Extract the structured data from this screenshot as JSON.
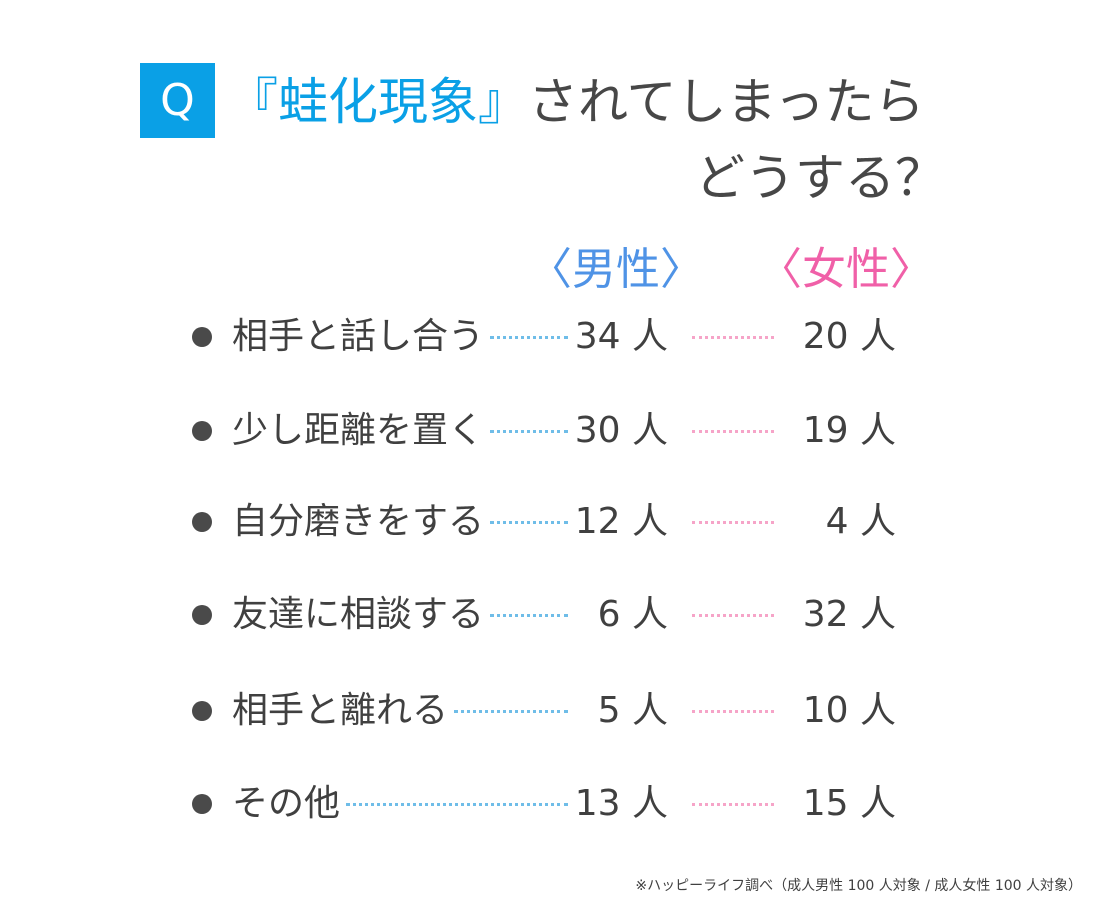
{
  "title": {
    "badge": "Q",
    "highlight": "『蛙化現象』",
    "line1_rest": "されてしまったら",
    "line2": "どうする？"
  },
  "columns": {
    "male": "〈男性〉",
    "female": "〈女性〉"
  },
  "unit": "人",
  "colors": {
    "accent_blue": "#0aa0e6",
    "male": "#4f93e6",
    "female": "#f060a8",
    "male_dots": "#6fbde8",
    "female_dots": "#f6a4c8"
  },
  "chart_data": {
    "type": "table",
    "columns": [
      "〈男性〉",
      "〈女性〉"
    ],
    "categories": [
      "相手と話し合う",
      "少し距離を置く",
      "自分磨きをする",
      "友達に相談する",
      "相手と離れる",
      "その他"
    ],
    "series": [
      {
        "name": "〈男性〉",
        "values": [
          34,
          30,
          12,
          6,
          5,
          13
        ]
      },
      {
        "name": "〈女性〉",
        "values": [
          20,
          19,
          4,
          32,
          10,
          15
        ]
      }
    ],
    "unit": "人"
  },
  "rows": [
    {
      "label": "相手と話し合う",
      "male": "34 人",
      "female": "20 人"
    },
    {
      "label": "少し距離を置く",
      "male": "30 人",
      "female": "19 人"
    },
    {
      "label": "自分磨きをする",
      "male": "12 人",
      "female": "4 人"
    },
    {
      "label": "友達に相談する",
      "male": "6 人",
      "female": "32 人"
    },
    {
      "label": "相手と離れる",
      "male": "5 人",
      "female": "10 人"
    },
    {
      "label": "その他",
      "male": "13 人",
      "female": "15 人"
    }
  ],
  "footnote": "※ハッピーライフ調べ（成人男性 100 人対象 / 成人女性 100 人対象）"
}
